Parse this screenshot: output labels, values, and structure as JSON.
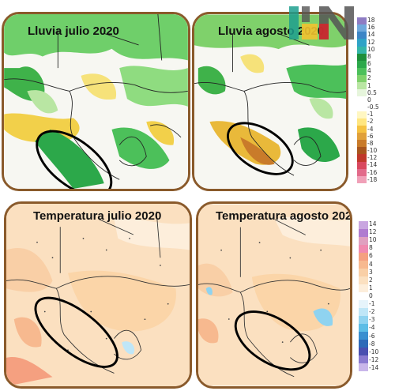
{
  "panels": {
    "rain_july": {
      "title": "Lluvia julio 2020"
    },
    "rain_august": {
      "title": "Lluvia agosto 2020"
    },
    "temp_july": {
      "title": "Temperatura julio 2020"
    },
    "temp_august": {
      "title": "Temperatura agosto 2020"
    }
  },
  "legends": {
    "rain": {
      "ticks": [
        "18",
        "16",
        "14",
        "12",
        "10",
        "8",
        "6",
        "4",
        "2",
        "1",
        "0.5",
        "0",
        "-0.5",
        "-1",
        "-2",
        "-4",
        "-6",
        "-8",
        "-10",
        "-12",
        "-14",
        "-16",
        "-18"
      ],
      "colors": [
        "#8e7cc3",
        "#6fa8dc",
        "#3d85c6",
        "#2fa3c7",
        "#35b6a8",
        "#1e8f3a",
        "#2ca84a",
        "#4cc05a",
        "#7fd16b",
        "#b9e6a3",
        "#e6f5dc",
        "#ffffff",
        "#ffffff",
        "#fff7c2",
        "#ffe680",
        "#f5c242",
        "#e0a03a",
        "#c97b2a",
        "#a8561e",
        "#c0392b",
        "#d9485f",
        "#e26a8a",
        "#f0a0b8"
      ]
    },
    "temp": {
      "ticks": [
        "14",
        "12",
        "10",
        "8",
        "6",
        "4",
        "3",
        "2",
        "1",
        "0",
        "-1",
        "-2",
        "-3",
        "-4",
        "-6",
        "-8",
        "-10",
        "-12",
        "-14"
      ],
      "colors": [
        "#c9a6e0",
        "#b07cd0",
        "#e0a0c0",
        "#f08ab0",
        "#f5a080",
        "#f7b98f",
        "#f9cfa6",
        "#fbe0c0",
        "#fdeedb",
        "#ffffff",
        "#e6f4fb",
        "#bfe6f7",
        "#8fd3f0",
        "#5cbde6",
        "#3a8fd0",
        "#2e6ab8",
        "#4a4fb0",
        "#8a7ad0",
        "#c9b6ea"
      ]
    }
  },
  "colors": {
    "frame": "#8a5a2b",
    "outline_ellipse": "#000000",
    "logo_teal": "#1d9f8e",
    "logo_yellow": "#f2c230",
    "logo_red": "#d8232a",
    "logo_gray": "#555555"
  },
  "icons": [
    "logo-mark"
  ]
}
